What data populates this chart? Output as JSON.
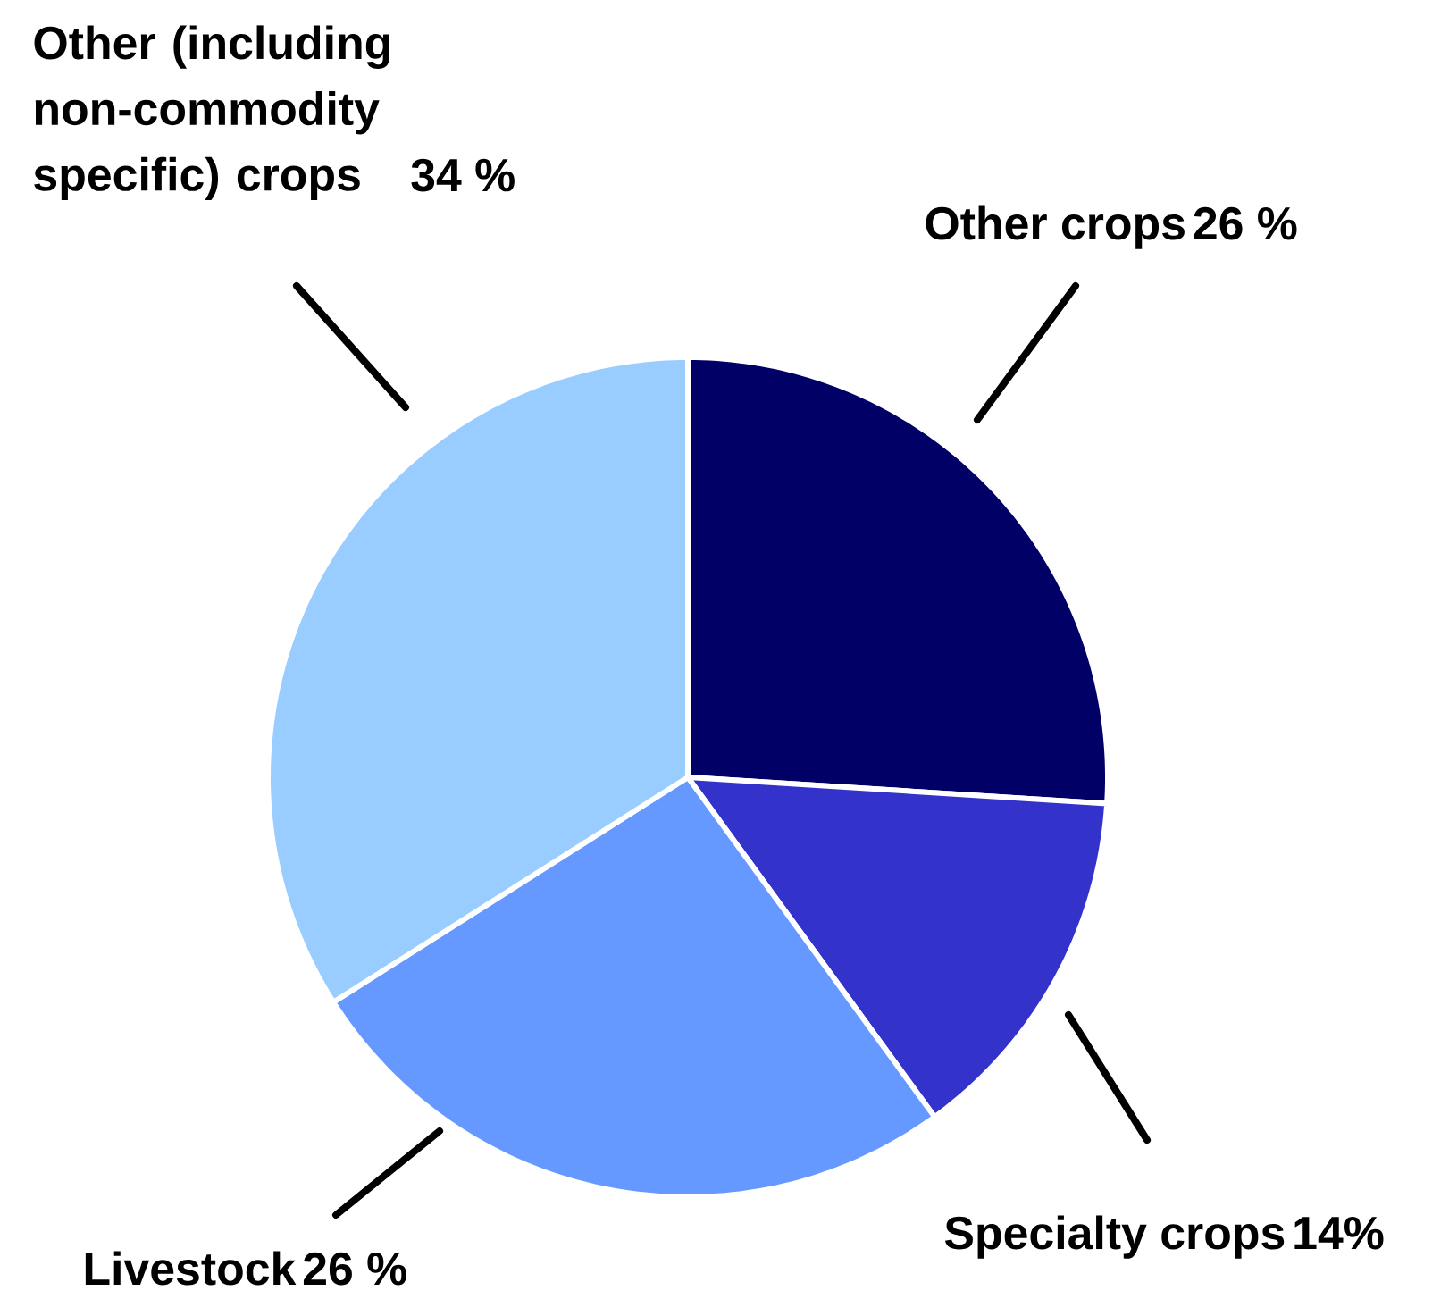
{
  "chart_data": {
    "type": "pie",
    "categories": [
      "Other crops",
      "Specialty crops",
      "Livestock",
      "Other (including non-commodity specific) crops"
    ],
    "values": [
      26,
      14,
      26,
      34
    ],
    "colors": [
      "#000066",
      "#3333cc",
      "#6699ff",
      "#99ccff"
    ],
    "value_labels": [
      "26 %",
      "14%",
      "26 %",
      "34 %"
    ]
  }
}
